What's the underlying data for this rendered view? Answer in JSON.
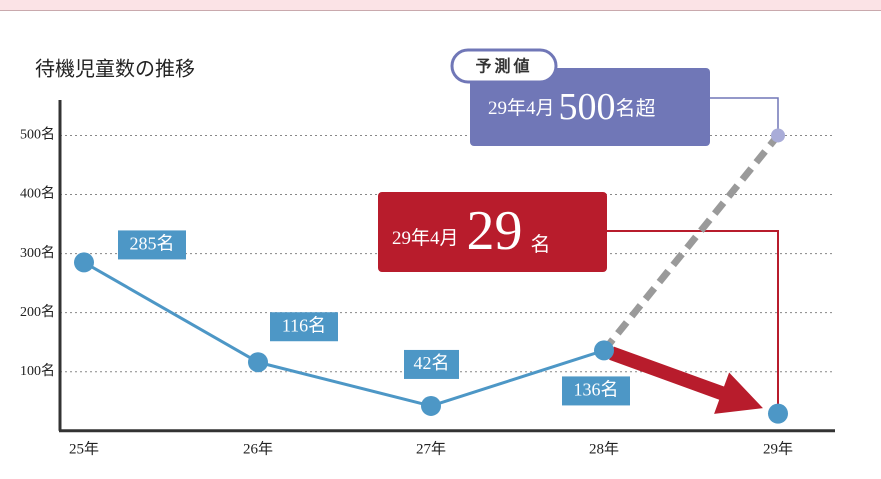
{
  "chart_data": {
    "type": "line",
    "title": "待機児童数の推移",
    "categories": [
      "25年",
      "26年",
      "27年",
      "28年",
      "29年"
    ],
    "series": [
      {
        "color": "#4d97c6",
        "highlight_color": "#b81c2c",
        "values": [
          285,
          116,
          42,
          136,
          29
        ],
        "value_labels": [
          "285名",
          "116名",
          "42名",
          "136名",
          null
        ]
      },
      {
        "name": "予測値",
        "color": "#9a9a9a",
        "marker_color": "#a9acd8",
        "values": [
          null,
          null,
          null,
          136,
          500
        ]
      }
    ],
    "annotations": [
      {
        "parts": [
          "29年4月",
          "500",
          "名超"
        ],
        "color": "#7077b7"
      },
      {
        "parts": [
          "29年4月",
          "29",
          "名"
        ],
        "color": "#b81c2c"
      }
    ],
    "ylim": [
      0,
      560
    ],
    "yticks": [
      {
        "value": 100,
        "label": "100名"
      },
      {
        "value": 200,
        "label": "200名"
      },
      {
        "value": 300,
        "label": "300名"
      },
      {
        "value": 400,
        "label": "400名"
      },
      {
        "value": 500,
        "label": "500名"
      }
    ],
    "grid": true
  }
}
